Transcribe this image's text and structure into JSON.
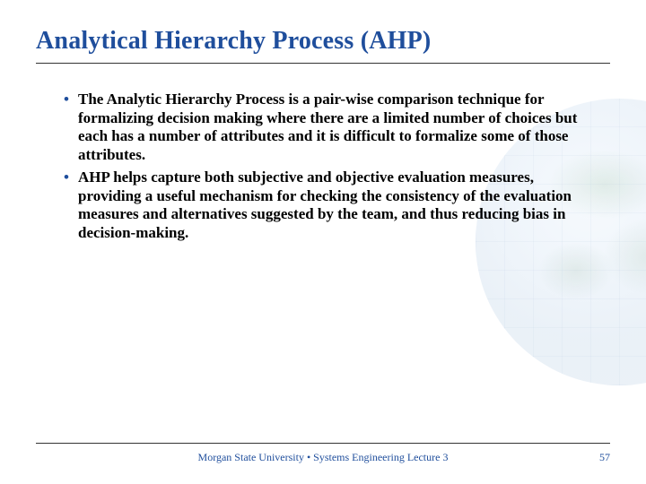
{
  "colors": {
    "title": "#1f4e9c",
    "bullet_marker": "#1f4e9c",
    "body_text": "#000000",
    "rule": "#333333",
    "footer_text": "#1f4e9c",
    "background": "#ffffff"
  },
  "typography": {
    "title_font": "Georgia / Book Antiqua",
    "title_size_pt": 21,
    "title_weight": "bold",
    "body_font": "Georgia / Book Antiqua",
    "body_size_pt": 13,
    "body_weight": "bold",
    "footer_size_pt": 9
  },
  "title": "Analytical Hierarchy Process (AHP)",
  "bullets": [
    "The Analytic Hierarchy Process is a pair-wise comparison technique for formalizing decision making where there are a limited number of choices but each has a number of attributes and it is difficult to formalize some of those attributes.",
    "AHP helps capture both subjective and objective evaluation measures, providing a useful mechanism for checking the consistency of the evaluation measures and alternatives suggested by the team, and thus reducing bias in decision-making."
  ],
  "footer": {
    "center": "Morgan State University • Systems Engineering Lecture 3",
    "page_number": "57"
  }
}
